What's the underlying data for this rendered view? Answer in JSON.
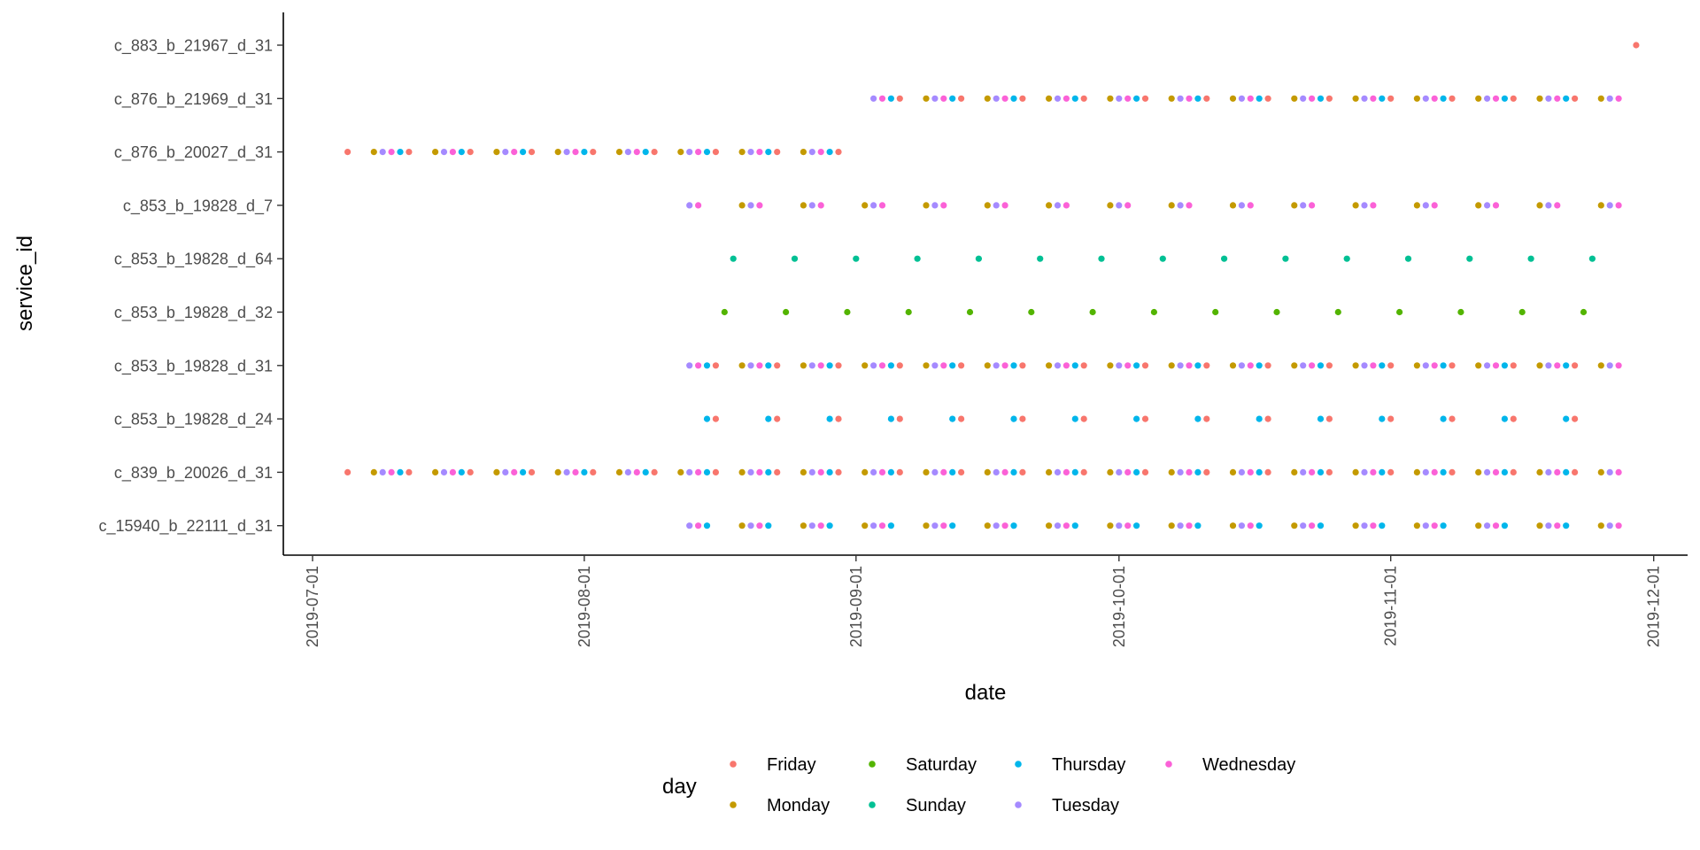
{
  "chart_data": {
    "type": "scatter",
    "xlabel": "date",
    "ylabel": "service_id",
    "x_ticks": [
      "2019-07-01",
      "2019-08-01",
      "2019-09-01",
      "2019-10-01",
      "2019-11-01",
      "2019-12-01"
    ],
    "xlim": [
      "2019-06-28",
      "2019-12-05"
    ],
    "categories": [
      "c_883_b_21967_d_31",
      "c_876_b_21969_d_31",
      "c_876_b_20027_d_31",
      "c_853_b_19828_d_7",
      "c_853_b_19828_d_64",
      "c_853_b_19828_d_32",
      "c_853_b_19828_d_31",
      "c_853_b_19828_d_24",
      "c_839_b_20026_d_31",
      "c_15940_b_22111_d_31"
    ],
    "grid": false,
    "legend": {
      "title": "day",
      "position": "bottom",
      "entries": [
        {
          "name": "Friday",
          "color": "#F8766D"
        },
        {
          "name": "Monday",
          "color": "#C49A00"
        },
        {
          "name": "Saturday",
          "color": "#53B400"
        },
        {
          "name": "Sunday",
          "color": "#00C094"
        },
        {
          "name": "Thursday",
          "color": "#00B6EB"
        },
        {
          "name": "Tuesday",
          "color": "#A58AFF"
        },
        {
          "name": "Wednesday",
          "color": "#FB61D7"
        }
      ]
    },
    "series": [
      {
        "service_id": "c_883_b_21967_d_31",
        "start": "2019-11-29",
        "end": "2019-11-29",
        "days": [
          "Friday"
        ]
      },
      {
        "service_id": "c_876_b_21969_d_31",
        "start": "2019-09-03",
        "end": "2019-11-27",
        "days": [
          "Monday",
          "Tuesday",
          "Wednesday",
          "Thursday",
          "Friday"
        ]
      },
      {
        "service_id": "c_876_b_20027_d_31",
        "start": "2019-07-05",
        "end": "2019-08-30",
        "days": [
          "Monday",
          "Tuesday",
          "Wednesday",
          "Thursday",
          "Friday"
        ]
      },
      {
        "service_id": "c_853_b_19828_d_7",
        "start": "2019-08-13",
        "end": "2019-11-27",
        "days": [
          "Monday",
          "Tuesday",
          "Wednesday"
        ]
      },
      {
        "service_id": "c_853_b_19828_d_64",
        "start": "2019-08-18",
        "end": "2019-11-24",
        "days": [
          "Sunday"
        ]
      },
      {
        "service_id": "c_853_b_19828_d_32",
        "start": "2019-08-17",
        "end": "2019-11-23",
        "days": [
          "Saturday"
        ]
      },
      {
        "service_id": "c_853_b_19828_d_31",
        "start": "2019-08-13",
        "end": "2019-11-27",
        "days": [
          "Monday",
          "Tuesday",
          "Wednesday",
          "Thursday",
          "Friday"
        ]
      },
      {
        "service_id": "c_853_b_19828_d_24",
        "start": "2019-08-15",
        "end": "2019-11-22",
        "days": [
          "Thursday",
          "Friday"
        ]
      },
      {
        "service_id": "c_839_b_20026_d_31",
        "start": "2019-07-05",
        "end": "2019-11-27",
        "days": [
          "Monday",
          "Tuesday",
          "Wednesday",
          "Thursday",
          "Friday"
        ]
      },
      {
        "service_id": "c_15940_b_22111_d_31",
        "start": "2019-08-13",
        "end": "2019-11-27",
        "days": [
          "Monday",
          "Tuesday",
          "Wednesday",
          "Thursday"
        ]
      }
    ]
  }
}
